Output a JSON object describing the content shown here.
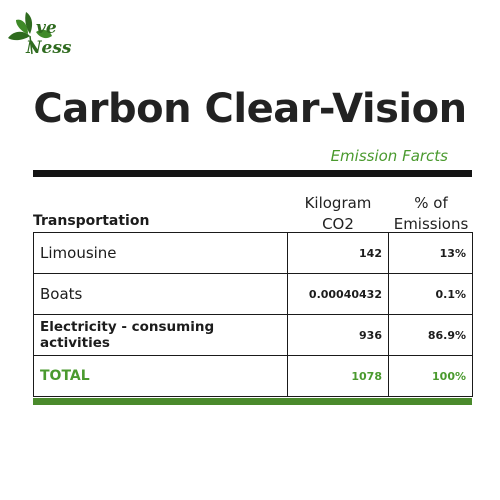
{
  "brand": {
    "logo_line1": "ve",
    "logo_line2": "Ness"
  },
  "title": "Carbon Clear-Vision",
  "subtitle": "Emission Farcts",
  "table": {
    "section_label": "Transportation",
    "columns": {
      "kg_line1": "Kilogram",
      "kg_line2": "CO2",
      "pct_line1": "% of",
      "pct_line2": "Emissions"
    },
    "rows": [
      {
        "label": "Limousine",
        "kg": "142",
        "pct": "13%"
      },
      {
        "label": "Boats",
        "kg": "0.00040432",
        "pct": "0.1%"
      },
      {
        "label": "Electricity - consuming activities",
        "kg": "936",
        "pct": "86.9%"
      }
    ],
    "total": {
      "label": "TOTAL",
      "kg": "1078",
      "pct": "100%"
    }
  },
  "colors": {
    "accent_green": "#4a9a2e",
    "bar_green": "#4a8a2c",
    "bar_dark": "#141414"
  }
}
